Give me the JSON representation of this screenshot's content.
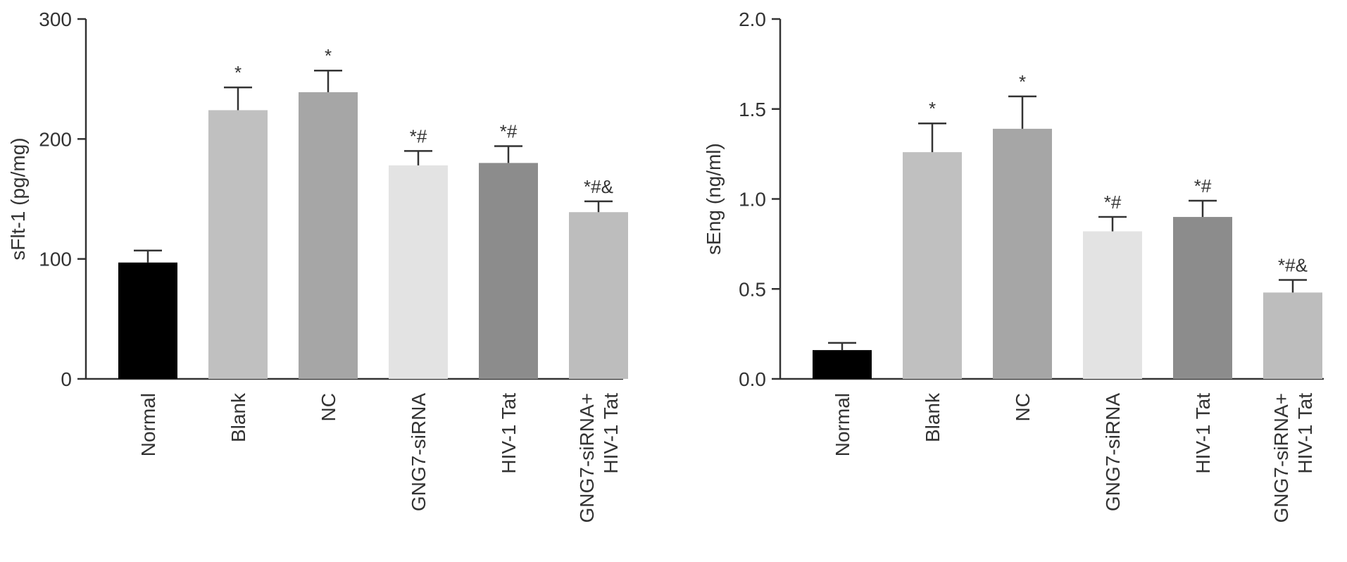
{
  "chart_data": [
    {
      "type": "bar",
      "ylabel": "sFlt-1 (pg/mg)",
      "xlabel": "",
      "ylim": [
        0,
        300
      ],
      "yticks": [
        "0",
        "100",
        "200",
        "300"
      ],
      "categories": [
        [
          "Normal"
        ],
        [
          "Blank"
        ],
        [
          "NC"
        ],
        [
          "GNG7-siRNA"
        ],
        [
          "HIV-1 Tat"
        ],
        [
          "GNG7-siRNA+",
          "HIV-1 Tat"
        ]
      ],
      "values": [
        97,
        224,
        239,
        178,
        180,
        139
      ],
      "errors": [
        10,
        19,
        18,
        12,
        14,
        9
      ],
      "significance": [
        "",
        "*",
        "*",
        "*#",
        "*#",
        "*#&"
      ],
      "colors": [
        "#000000",
        "#c0c0c0",
        "#a6a6a6",
        "#e3e3e3",
        "#8c8c8c",
        "#bdbdbd"
      ],
      "grid": false
    },
    {
      "type": "bar",
      "ylabel": "sEng (ng/ml)",
      "xlabel": "",
      "ylim": [
        0,
        2.0
      ],
      "yticks": [
        "0.0",
        "0.5",
        "1.0",
        "1.5",
        "2.0"
      ],
      "categories": [
        [
          "Normal"
        ],
        [
          "Blank"
        ],
        [
          "NC"
        ],
        [
          "GNG7-siRNA"
        ],
        [
          "HIV-1 Tat"
        ],
        [
          "GNG7-siRNA+",
          "HIV-1 Tat"
        ]
      ],
      "values": [
        0.16,
        1.26,
        1.39,
        0.82,
        0.9,
        0.48
      ],
      "errors": [
        0.04,
        0.16,
        0.18,
        0.08,
        0.09,
        0.07
      ],
      "significance": [
        "",
        "*",
        "*",
        "*#",
        "*#",
        "*#&"
      ],
      "colors": [
        "#000000",
        "#c0c0c0",
        "#a6a6a6",
        "#e3e3e3",
        "#8c8c8c",
        "#bdbdbd"
      ],
      "grid": false
    }
  ]
}
